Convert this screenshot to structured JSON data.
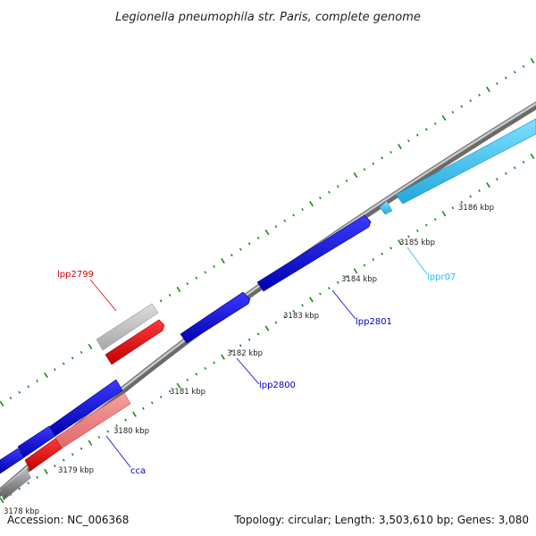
{
  "title": "Legionella pneumophila str. Paris, complete genome",
  "footer": {
    "accession": "Accession: NC_006368",
    "summary": "Topology: circular; Length: 3,503,610 bp; Genes: 3,080"
  },
  "colors": {
    "backbone": "#808080",
    "cds_forward": "#0000ee",
    "cds_reverse": "#ee0000",
    "cds_reverse_light": "#f08080",
    "pseudo_gray": "#c0c0c0",
    "rna": "#40c8f0",
    "tick": "#1a8a1a",
    "label_red": "#e00000",
    "label_blue": "#0000cc",
    "label_cyan": "#30b8e8"
  },
  "scale_ticks": [
    {
      "kbp": 3178,
      "label": "3178 kbp"
    },
    {
      "kbp": 3179,
      "label": "3179 kbp"
    },
    {
      "kbp": 3180,
      "label": "3180 kbp"
    },
    {
      "kbp": 3181,
      "label": "3181 kbp"
    },
    {
      "kbp": 3182,
      "label": "3182 kbp"
    },
    {
      "kbp": 3183,
      "label": "3183 kbp"
    },
    {
      "kbp": 3184,
      "label": "3184 kbp"
    },
    {
      "kbp": 3185,
      "label": "3185 kbp"
    },
    {
      "kbp": 3186,
      "label": "3186 kbp"
    }
  ],
  "features": [
    {
      "name": "lpp2799",
      "strand": "reverse",
      "type": "pseudo"
    },
    {
      "name": "lpp2799",
      "strand": "reverse",
      "type": "CDS"
    },
    {
      "name": "lpp2800",
      "strand": "forward",
      "type": "CDS"
    },
    {
      "name": "lpp2801",
      "strand": "forward",
      "type": "CDS"
    },
    {
      "name": "lppr07",
      "strand": "forward",
      "type": "RNA"
    },
    {
      "name": "cca",
      "strand": "forward",
      "type": "CDS"
    }
  ],
  "feature_labels": [
    {
      "text": "lpp2799",
      "color": "#e00000"
    },
    {
      "text": "lpp2801",
      "color": "#0000cc"
    },
    {
      "text": "lpp2800",
      "color": "#0000cc"
    },
    {
      "text": "lppr07",
      "color": "#30b8e8"
    },
    {
      "text": "cca",
      "color": "#0000cc"
    }
  ]
}
